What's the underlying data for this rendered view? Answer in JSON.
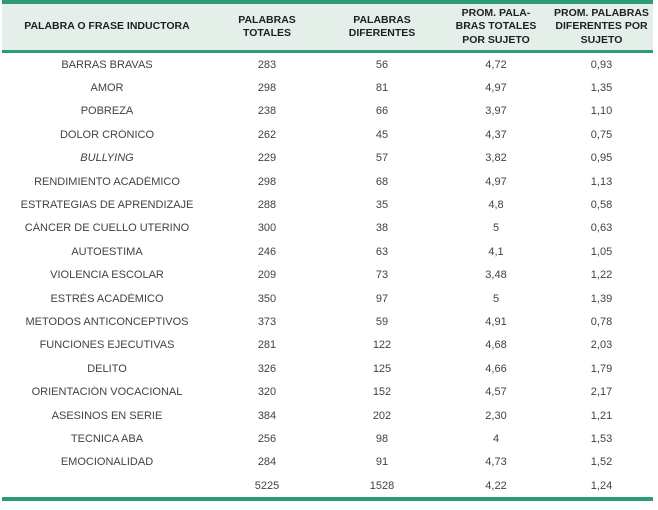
{
  "colors": {
    "accent_teal": "#2e9b78",
    "header_bg": "#e4efe9",
    "header_text": "#1f1f1f",
    "body_text": "#3f4247"
  },
  "chart_data": {
    "type": "table",
    "columns": [
      "PALABRA O FRASE INDUCTORA",
      "PALABRAS TOTALES",
      "PALABRAS\nDIFERENTES",
      "PROM. PALA-\nBRAS TOTALES\nPOR SUJETO",
      "PROM. PALABRAS\nDIFERENTES POR\nSUJETO"
    ],
    "rows": [
      {
        "label": "BARRAS BRAVAS",
        "italic": false,
        "values": [
          "283",
          "56",
          "4,72",
          "0,93"
        ]
      },
      {
        "label": "AMOR",
        "italic": false,
        "values": [
          "298",
          "81",
          "4,97",
          "1,35"
        ]
      },
      {
        "label": "POBREZA",
        "italic": false,
        "values": [
          "238",
          "66",
          "3,97",
          "1,10"
        ]
      },
      {
        "label": "DOLOR CRÓNICO",
        "italic": false,
        "values": [
          "262",
          "45",
          "4,37",
          "0,75"
        ]
      },
      {
        "label": "BULLYING",
        "italic": true,
        "values": [
          "229",
          "57",
          "3,82",
          "0,95"
        ]
      },
      {
        "label": "RENDIMIENTO ACADÉMICO",
        "italic": false,
        "values": [
          "298",
          "68",
          "4,97",
          "1,13"
        ]
      },
      {
        "label": "ESTRATEGIAS DE APRENDIZAJE",
        "italic": false,
        "values": [
          "288",
          "35",
          "4,8",
          "0,58"
        ]
      },
      {
        "label": "CÁNCER DE CUELLO UTERINO",
        "italic": false,
        "values": [
          "300",
          "38",
          "5",
          "0,63"
        ]
      },
      {
        "label": "AUTOESTIMA",
        "italic": false,
        "values": [
          "246",
          "63",
          "4,1",
          "1,05"
        ]
      },
      {
        "label": "VIOLENCIA ESCOLAR",
        "italic": false,
        "values": [
          "209",
          "73",
          "3,48",
          "1,22"
        ]
      },
      {
        "label": "ESTRÉS ACADÉMICO",
        "italic": false,
        "values": [
          "350",
          "97",
          "5",
          "1,39"
        ]
      },
      {
        "label": "METODOS ANTICONCEPTIVOS",
        "italic": false,
        "values": [
          "373",
          "59",
          "4,91",
          "0,78"
        ]
      },
      {
        "label": "FUNCIONES EJECUTIVAS",
        "italic": false,
        "values": [
          "281",
          "122",
          "4,68",
          "2,03"
        ]
      },
      {
        "label": "DELITO",
        "italic": false,
        "values": [
          "326",
          "125",
          "4,66",
          "1,79"
        ]
      },
      {
        "label": "ORIENTACIÓN VOCACIONAL",
        "italic": false,
        "values": [
          "320",
          "152",
          "4,57",
          "2,17"
        ]
      },
      {
        "label": "ASESINOS EN SERIE",
        "italic": false,
        "values": [
          "384",
          "202",
          "2,30",
          "1,21"
        ]
      },
      {
        "label": "TECNICA ABA",
        "italic": false,
        "values": [
          "256",
          "98",
          "4",
          "1,53"
        ]
      },
      {
        "label": "EMOCIONALIDAD",
        "italic": false,
        "values": [
          "284",
          "91",
          "4,73",
          "1,52"
        ]
      }
    ],
    "totals": {
      "label": "",
      "italic": false,
      "values": [
        "5225",
        "1528",
        "4,22",
        "1,24"
      ]
    }
  }
}
